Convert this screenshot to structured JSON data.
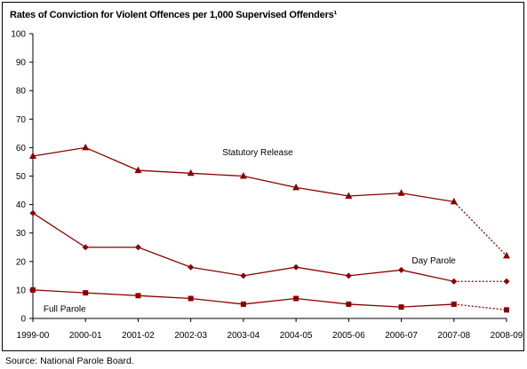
{
  "chart_data": {
    "type": "line",
    "title": "Rates of Conviction for Violent Offences per 1,000 Supervised Offenders¹",
    "xlabel": "",
    "ylabel": "",
    "categories": [
      "1999-00",
      "2000-01",
      "2001-02",
      "2002-03",
      "2003-04",
      "2004-05",
      "2005-06",
      "2006-07",
      "2007-08",
      "2008-09"
    ],
    "ylim": [
      0,
      100
    ],
    "yticks": [
      "0",
      "10",
      "20",
      "30",
      "40",
      "50",
      "60",
      "70",
      "80",
      "90",
      "100"
    ],
    "grid": false,
    "colors": {
      "series": "#8b0000",
      "axis": "#000000"
    },
    "series": [
      {
        "name": "Statutory Release",
        "marker": "triangle",
        "values": [
          57,
          60,
          52,
          51,
          50,
          46,
          43,
          44,
          41,
          22
        ],
        "dotted_last_segment": true
      },
      {
        "name": "Day Parole",
        "marker": "diamond",
        "values": [
          37,
          25,
          25,
          18,
          15,
          18,
          15,
          17,
          13,
          13
        ],
        "dotted_last_segment": true
      },
      {
        "name": "Full Parole",
        "marker": "square",
        "values": [
          10,
          9,
          8,
          7,
          5,
          7,
          5,
          4,
          5,
          3
        ],
        "dotted_last_segment": true
      }
    ],
    "source": "Source:  National Parole Board."
  }
}
